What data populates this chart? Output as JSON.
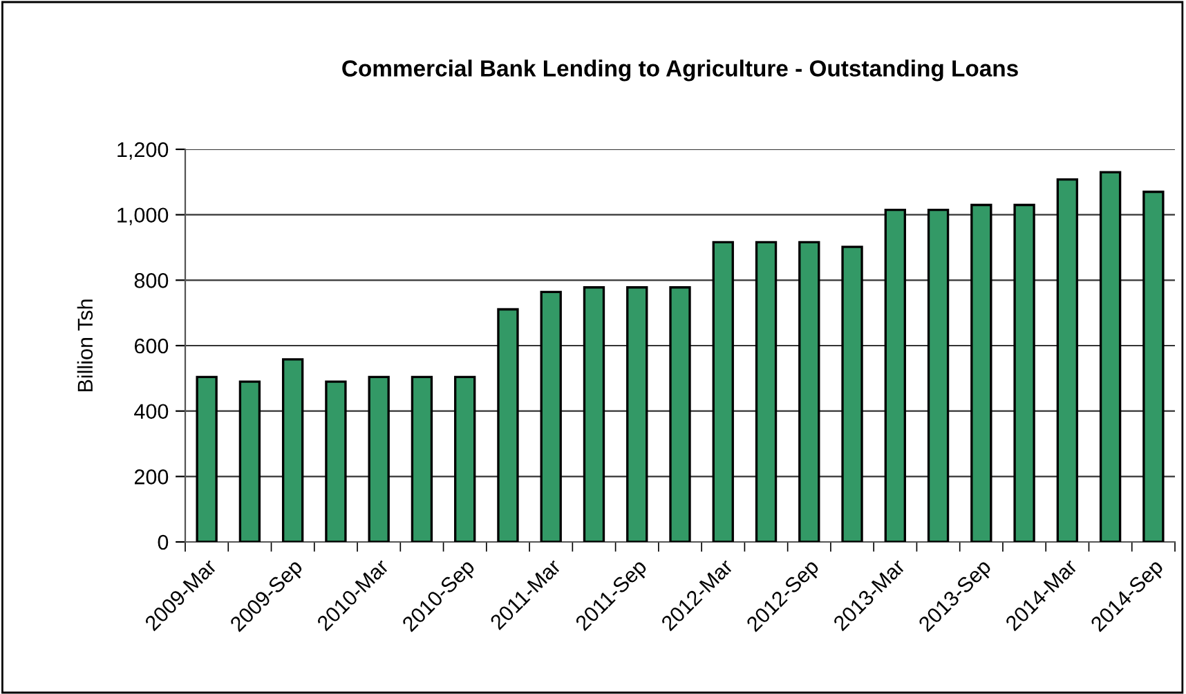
{
  "chart_data": {
    "type": "bar",
    "title": "Commercial Bank Lending to Agriculture - Outstanding Loans",
    "ylabel": "Billion Tsh",
    "categories": [
      "2009-Mar",
      null,
      "2009-Sep",
      null,
      "2010-Mar",
      null,
      "2010-Sep",
      null,
      "2011-Mar",
      null,
      "2011-Sep",
      null,
      "2012-Mar",
      null,
      "2012-Sep",
      null,
      "2013-Mar",
      null,
      "2013-Sep",
      null,
      "2014-Mar",
      null,
      "2014-Sep"
    ],
    "values": [
      504,
      490,
      558,
      490,
      504,
      504,
      504,
      711,
      764,
      778,
      778,
      778,
      916,
      916,
      916,
      902,
      1015,
      1015,
      1030,
      1030,
      1108,
      1130,
      1070
    ],
    "color": "#339966",
    "ylim": [
      0,
      1200
    ],
    "yticks": [
      0,
      {
        "value": 200,
        "label": "200"
      },
      {
        "value": 400,
        "label": "400"
      },
      {
        "value": 600,
        "label": "600"
      },
      {
        "value": 800,
        "label": "800"
      },
      {
        "value": 1000,
        "label": "1,000"
      },
      {
        "value": 1200,
        "label": "1,200"
      }
    ],
    "grid": "y",
    "legend": false
  }
}
